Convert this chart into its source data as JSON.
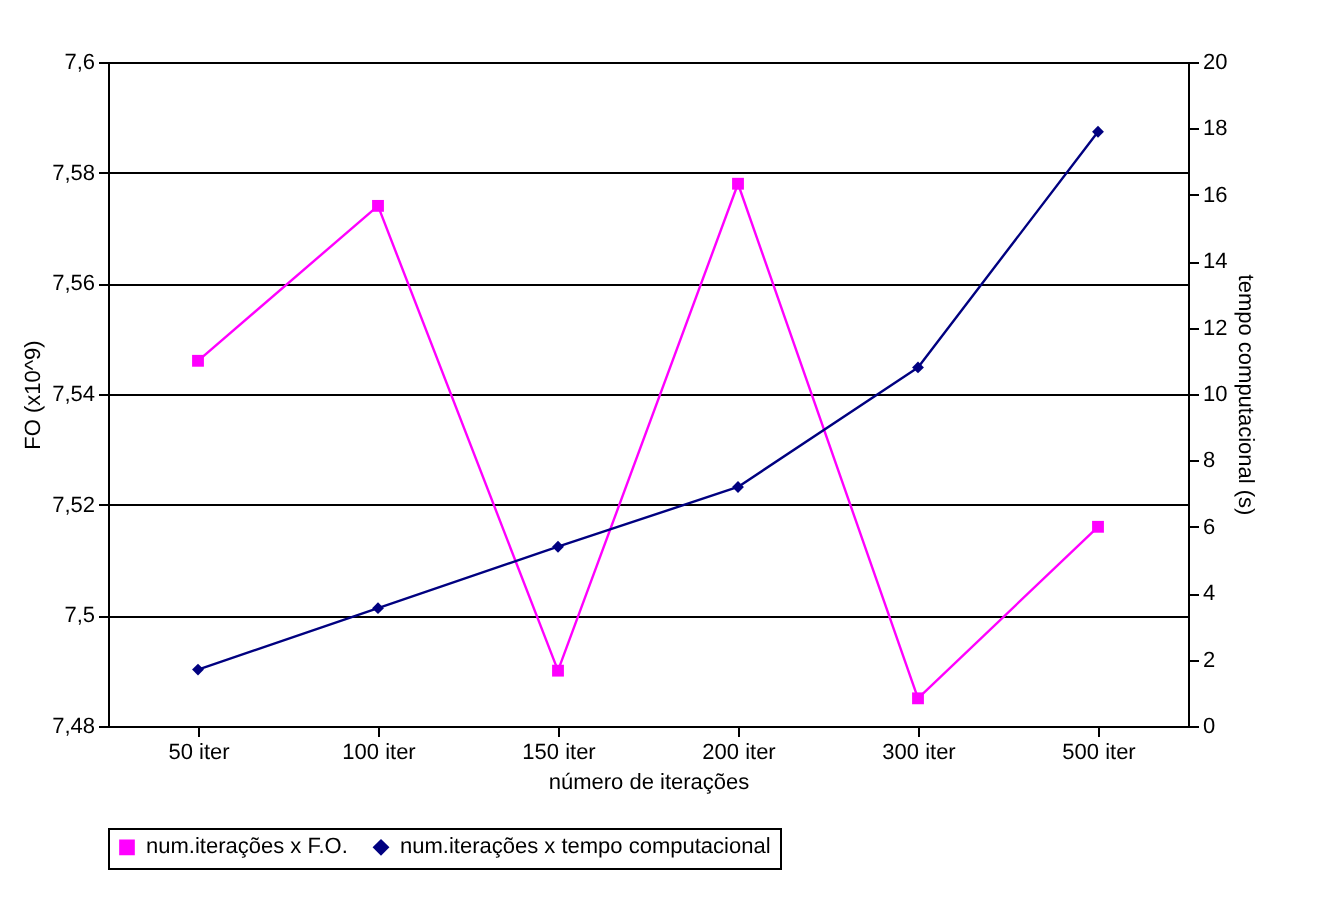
{
  "chart_data": {
    "type": "line",
    "xlabel": "número de iterações",
    "ylabel": "FO (x10^9)",
    "y2label": "tempo computacional (s)",
    "categories": [
      "50 iter",
      "100 iter",
      "150 iter",
      "200 iter",
      "300 iter",
      "500 iter"
    ],
    "series": [
      {
        "name": "num.iterações x F.O.",
        "color": "#ff00ff",
        "marker": "square",
        "values": [
          7.546,
          7.574,
          7.49,
          7.578,
          7.485,
          7.516
        ]
      },
      {
        "name": "num.iterações x tempo computacional",
        "color": "#000080",
        "marker": "diamond",
        "axis": "y2",
        "values": [
          1.7,
          3.55,
          5.4,
          7.2,
          10.8,
          17.9
        ]
      }
    ],
    "ylim": [
      7.48,
      7.6
    ],
    "yticks": [
      {
        "value": 7.48,
        "label": "7,48"
      },
      {
        "value": 7.5,
        "label": "7,5"
      },
      {
        "value": 7.52,
        "label": "7,52"
      },
      {
        "value": 7.54,
        "label": "7,54"
      },
      {
        "value": 7.56,
        "label": "7,56"
      },
      {
        "value": 7.58,
        "label": "7,58"
      },
      {
        "value": 7.6,
        "label": "7,6"
      }
    ],
    "y2lim": [
      0,
      20
    ],
    "y2ticks": [
      0,
      2,
      4,
      6,
      8,
      10,
      12,
      14,
      16,
      18,
      20
    ],
    "grid": "y",
    "legend": "bottom",
    "line_style": "solid"
  }
}
